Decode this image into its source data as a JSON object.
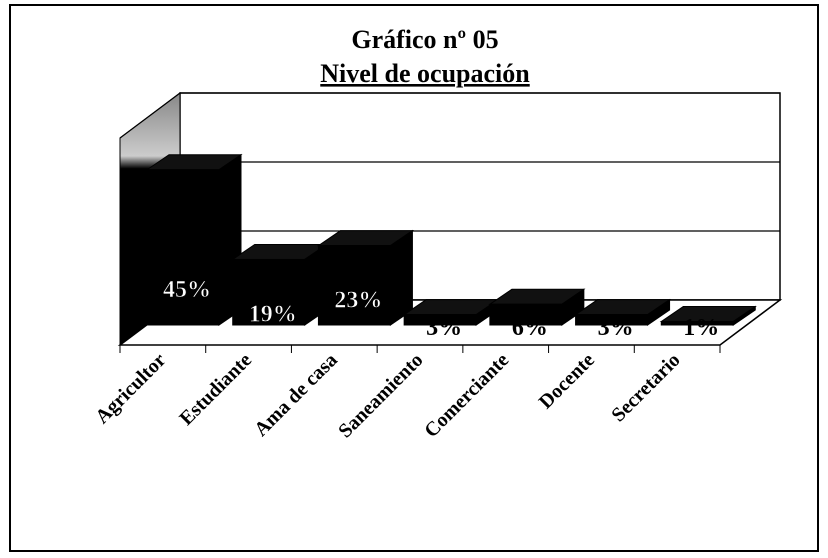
{
  "chart_data": {
    "type": "bar3d",
    "title": "Gráfico nº 05",
    "subtitle": "Nivel de ocupación",
    "categories": [
      "Agricultor",
      "Estudiante",
      "Ama de casa",
      "Saneamiento",
      "Comerciante",
      "Docente",
      "Secretario"
    ],
    "values": [
      45,
      19,
      23,
      3,
      6,
      3,
      1
    ],
    "value_labels": [
      "45%",
      "19%",
      "23%",
      "3%",
      "6%",
      "3%",
      "1%"
    ],
    "color": "#000000",
    "ylim": [
      0,
      60
    ],
    "yticks": [
      0,
      20,
      40,
      60
    ],
    "grid": true
  }
}
